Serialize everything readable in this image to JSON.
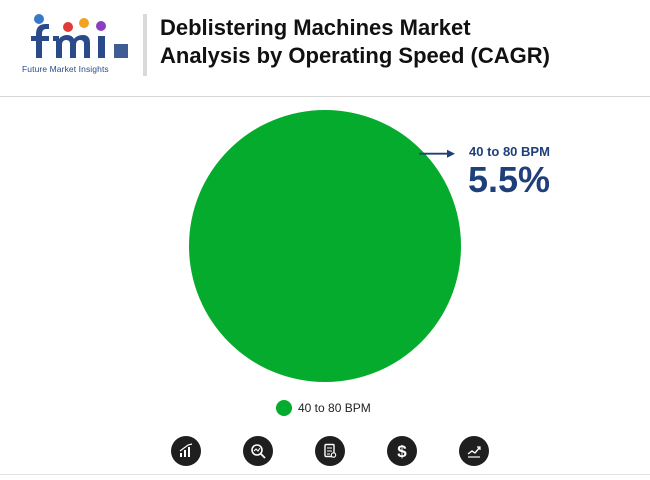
{
  "brand": {
    "logo_text": "fmi",
    "tagline": "Future Market Insights"
  },
  "title_line1": "Deblistering Machines Market",
  "title_line2": "Analysis by Operating Speed (CAGR)",
  "colors": {
    "slice": "#05ab2c",
    "callout": "#1f3f7a",
    "icon_bg": "#1f1f1f"
  },
  "chart_data": {
    "type": "pie",
    "categories": [
      "40 to 80 BPM"
    ],
    "values": [
      5.5
    ],
    "value_labels": [
      "5.5%"
    ],
    "legend": "bottom-center"
  },
  "footer_icons": [
    "bar-chart-icon",
    "magnifier-chart-icon",
    "report-icon",
    "dollar-icon",
    "line-chart-icon"
  ]
}
